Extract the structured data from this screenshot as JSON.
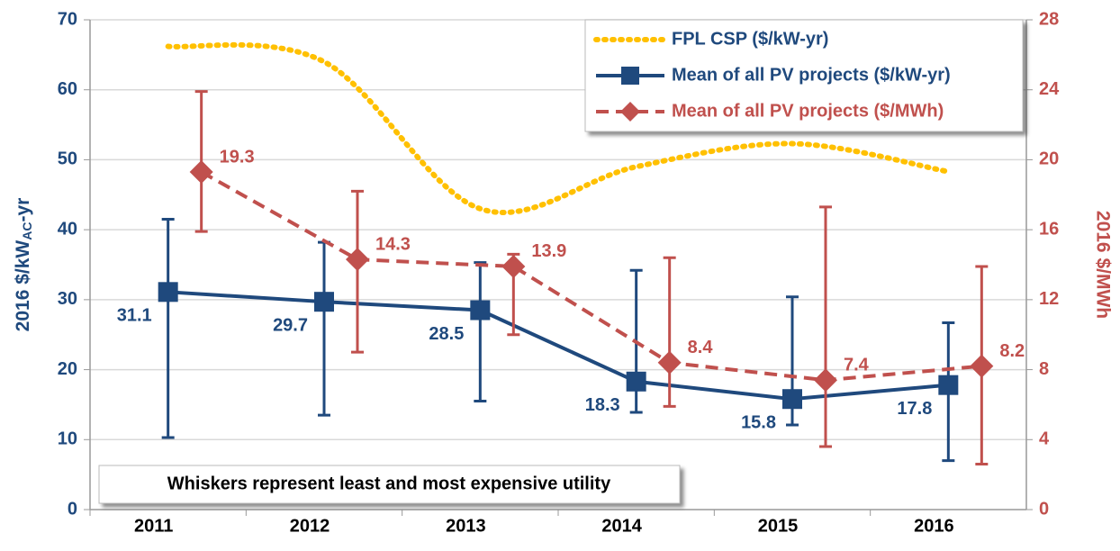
{
  "chart_data": {
    "type": "line",
    "ylabel_parts": [
      "2016 $/kW",
      "AC",
      "-yr"
    ],
    "y2label": "2016 $/MWh",
    "annotation": "Whiskers represent least and most expensive utility",
    "categories": [
      "2011",
      "2012",
      "2013",
      "2014",
      "2015",
      "2016"
    ],
    "ylim": [
      0,
      70
    ],
    "yticks": [
      0,
      10,
      20,
      30,
      40,
      50,
      60,
      70
    ],
    "y2lim": [
      0,
      28
    ],
    "y2ticks": [
      0,
      4,
      8,
      12,
      16,
      20,
      24,
      28
    ],
    "grid": true,
    "legend": "top-right",
    "series": [
      {
        "name": "FPL CSP ($/kW-yr)",
        "color": "#ffc000",
        "style": "dotted",
        "values": [
          66.2,
          64,
          43,
          49,
          52.3,
          48.3
        ]
      },
      {
        "name": "Mean of all PV projects ($/kW-yr)",
        "color": "#1f497d",
        "style": "solid",
        "marker": "square",
        "values": [
          31.1,
          29.7,
          28.5,
          18.3,
          15.8,
          17.8
        ],
        "low": [
          10.3,
          13.5,
          15.5,
          13.9,
          12.1,
          7.0
        ],
        "high": [
          41.5,
          38.2,
          35.3,
          34.2,
          30.4,
          26.7
        ]
      },
      {
        "name": "Mean of all PV projects ($/MWh)",
        "color": "#c0504d",
        "style": "dashed",
        "marker": "diamond",
        "axis": "y2",
        "values": [
          19.3,
          14.3,
          13.9,
          8.4,
          7.4,
          8.2
        ],
        "low": [
          15.9,
          9.0,
          10.0,
          5.9,
          3.6,
          2.6
        ],
        "high": [
          23.9,
          18.2,
          14.6,
          14.4,
          17.3,
          13.9
        ]
      }
    ]
  }
}
